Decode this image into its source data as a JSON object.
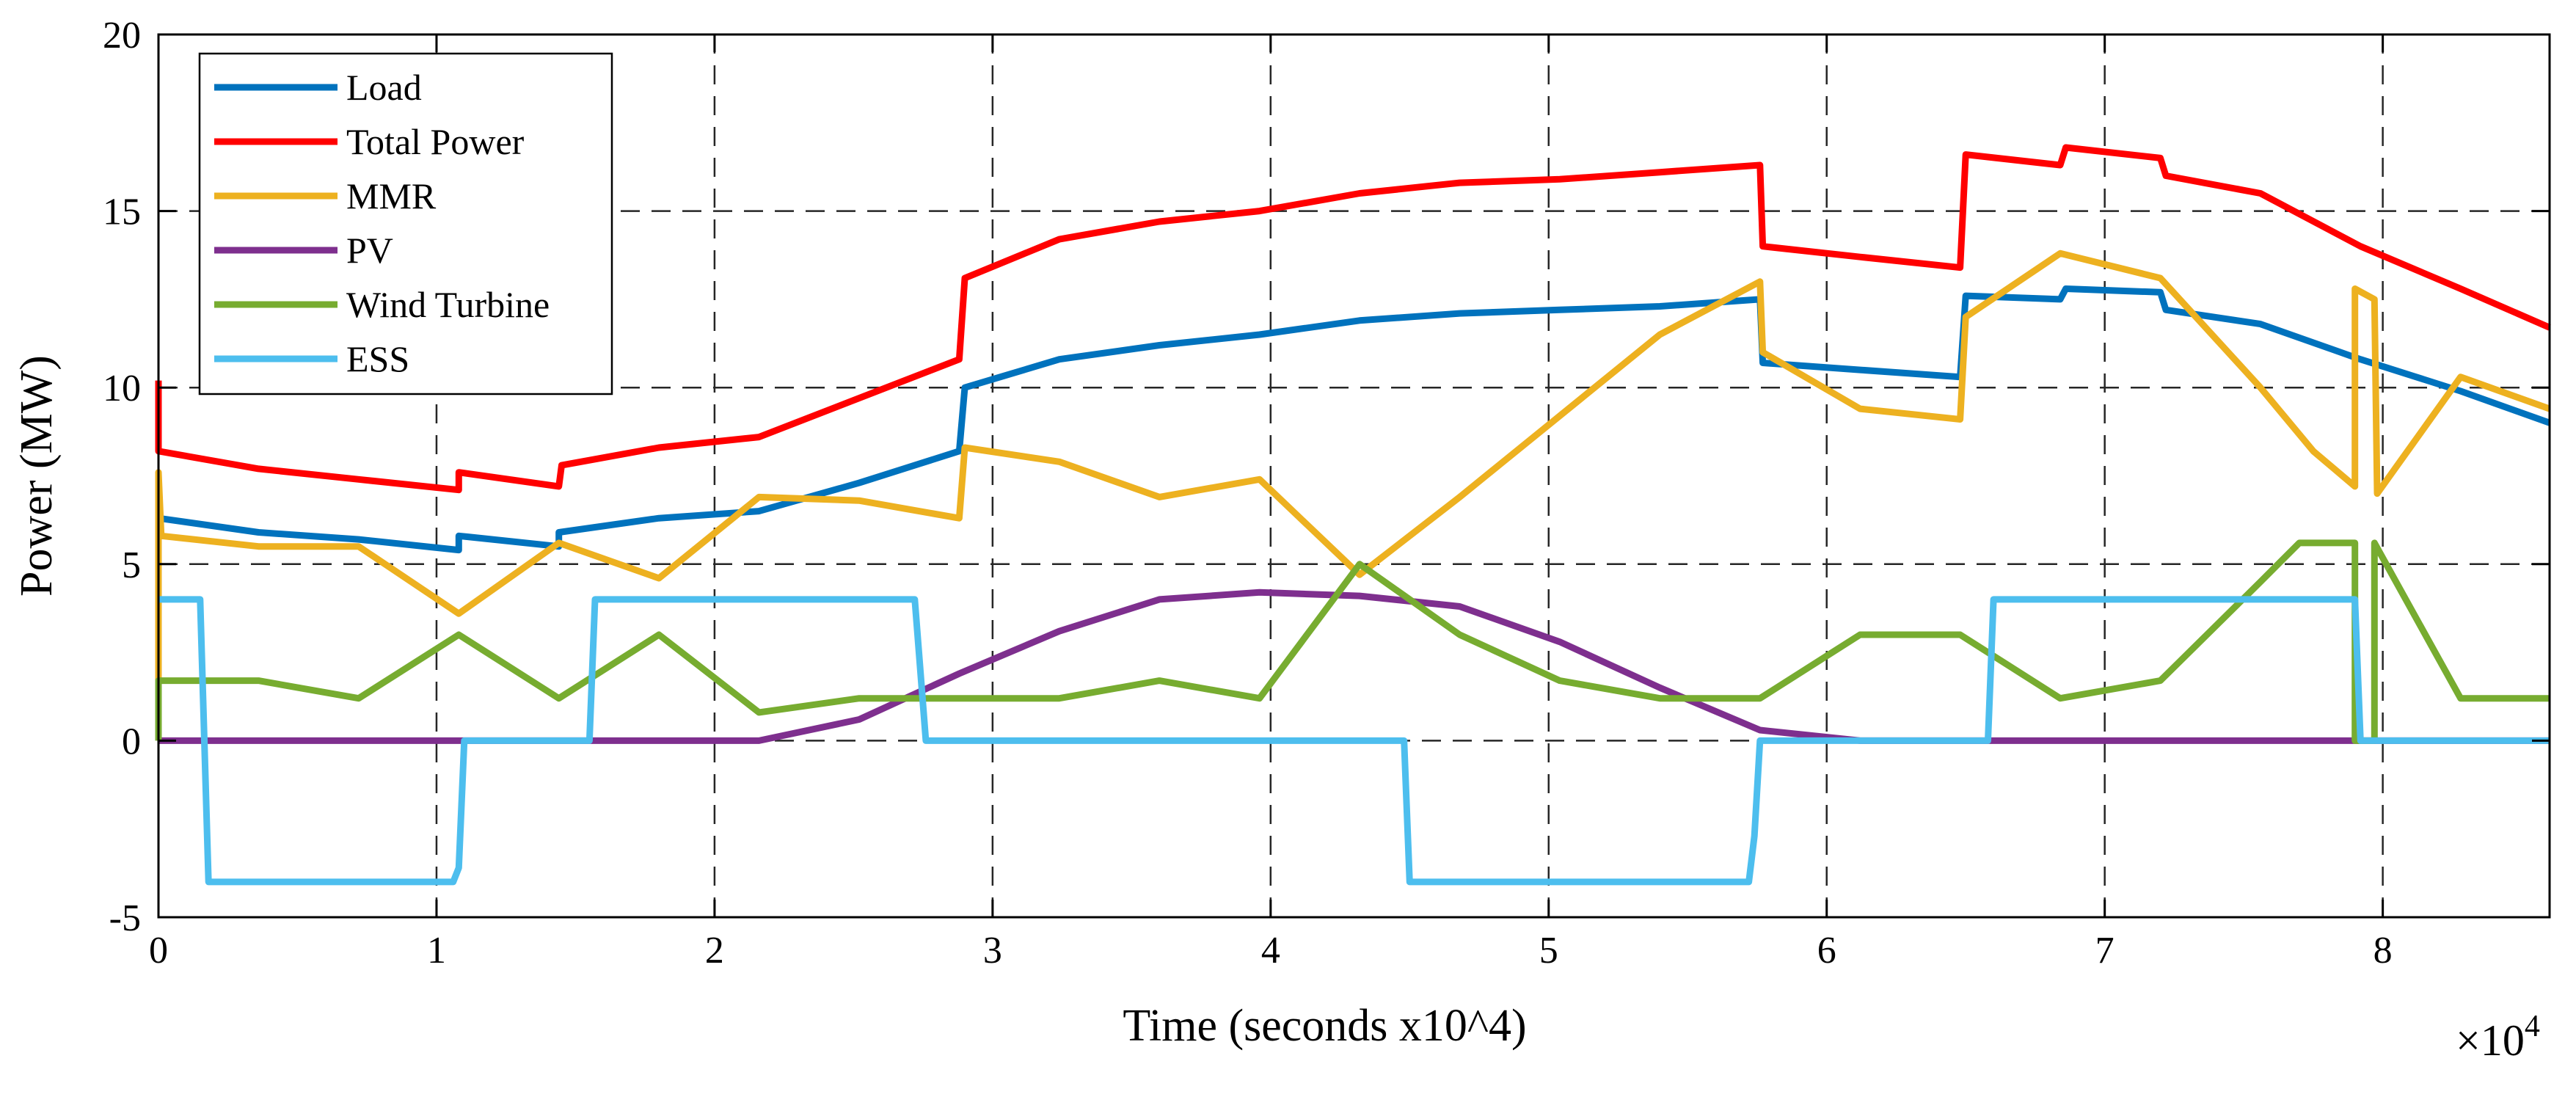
{
  "chart_data": {
    "type": "line",
    "title": "",
    "xlabel": "Time (seconds x10^4)",
    "ylabel": "Power (MW)",
    "x_multiplier": "×10",
    "x_multiplier_exponent": "4",
    "xlim": [
      0,
      8.6
    ],
    "ylim": [
      -5,
      20
    ],
    "xticks": [
      0,
      1,
      2,
      3,
      4,
      5,
      6,
      7,
      8
    ],
    "xtick_labels": [
      "0",
      "1",
      "2",
      "3",
      "4",
      "5",
      "6",
      "7",
      "8"
    ],
    "yticks": [
      -5,
      0,
      5,
      10,
      15,
      20
    ],
    "ytick_labels": [
      "-5",
      "0",
      "5",
      "10",
      "15",
      "20"
    ],
    "grid": true,
    "legend_position": "top-left",
    "series": [
      {
        "name": "Load",
        "color": "#0072BD",
        "points": [
          [
            0,
            6.3
          ],
          [
            0.36,
            5.9
          ],
          [
            0.72,
            5.7
          ],
          [
            1.08,
            5.4
          ],
          [
            1.08,
            5.8
          ],
          [
            1.44,
            5.5
          ],
          [
            1.44,
            5.9
          ],
          [
            1.8,
            6.3
          ],
          [
            2.16,
            6.5
          ],
          [
            2.52,
            7.3
          ],
          [
            2.88,
            8.2
          ],
          [
            2.9,
            10.0
          ],
          [
            3.24,
            10.8
          ],
          [
            3.6,
            11.2
          ],
          [
            3.96,
            11.5
          ],
          [
            4.32,
            11.9
          ],
          [
            4.68,
            12.1
          ],
          [
            5.04,
            12.2
          ],
          [
            5.4,
            12.3
          ],
          [
            5.76,
            12.5
          ],
          [
            5.77,
            10.7
          ],
          [
            6.12,
            10.5
          ],
          [
            6.48,
            10.3
          ],
          [
            6.5,
            12.6
          ],
          [
            6.84,
            12.5
          ],
          [
            6.86,
            12.8
          ],
          [
            7.2,
            12.7
          ],
          [
            7.22,
            12.2
          ],
          [
            7.56,
            11.8
          ],
          [
            7.92,
            10.8
          ],
          [
            8.28,
            9.9
          ],
          [
            8.6,
            9.0
          ]
        ]
      },
      {
        "name": "Total Power",
        "color": "#FF0000",
        "points": [
          [
            0,
            10.2
          ],
          [
            0,
            8.2
          ],
          [
            0.36,
            7.7
          ],
          [
            0.72,
            7.4
          ],
          [
            1.08,
            7.1
          ],
          [
            1.08,
            7.6
          ],
          [
            1.44,
            7.2
          ],
          [
            1.45,
            7.8
          ],
          [
            1.8,
            8.3
          ],
          [
            2.16,
            8.6
          ],
          [
            2.52,
            9.7
          ],
          [
            2.88,
            10.8
          ],
          [
            2.9,
            13.1
          ],
          [
            3.24,
            14.2
          ],
          [
            3.6,
            14.7
          ],
          [
            3.96,
            15.0
          ],
          [
            4.32,
            15.5
          ],
          [
            4.68,
            15.8
          ],
          [
            5.04,
            15.9
          ],
          [
            5.4,
            16.1
          ],
          [
            5.76,
            16.3
          ],
          [
            5.77,
            14.0
          ],
          [
            6.12,
            13.7
          ],
          [
            6.48,
            13.4
          ],
          [
            6.5,
            16.6
          ],
          [
            6.84,
            16.3
          ],
          [
            6.86,
            16.8
          ],
          [
            7.2,
            16.5
          ],
          [
            7.22,
            16.0
          ],
          [
            7.56,
            15.5
          ],
          [
            7.92,
            14.0
          ],
          [
            8.28,
            12.8
          ],
          [
            8.6,
            11.7
          ]
        ]
      },
      {
        "name": "MMR",
        "color": "#EDB120",
        "points": [
          [
            0,
            1.6
          ],
          [
            0,
            7.6
          ],
          [
            0.01,
            5.8
          ],
          [
            0.36,
            5.5
          ],
          [
            0.72,
            5.5
          ],
          [
            1.08,
            3.6
          ],
          [
            1.44,
            5.6
          ],
          [
            1.8,
            4.6
          ],
          [
            2.16,
            6.9
          ],
          [
            2.52,
            6.8
          ],
          [
            2.88,
            6.3
          ],
          [
            2.9,
            8.3
          ],
          [
            3.24,
            7.9
          ],
          [
            3.6,
            6.9
          ],
          [
            3.96,
            7.4
          ],
          [
            4.2,
            5.6
          ],
          [
            4.32,
            4.7
          ],
          [
            4.68,
            6.9
          ],
          [
            5.04,
            9.2
          ],
          [
            5.4,
            11.5
          ],
          [
            5.76,
            13.0
          ],
          [
            5.77,
            11.0
          ],
          [
            6.12,
            9.4
          ],
          [
            6.48,
            9.1
          ],
          [
            6.5,
            12.0
          ],
          [
            6.84,
            13.8
          ],
          [
            7.2,
            13.1
          ],
          [
            7.56,
            10.0
          ],
          [
            7.75,
            8.2
          ],
          [
            7.9,
            7.2
          ],
          [
            7.9,
            12.8
          ],
          [
            7.97,
            12.5
          ],
          [
            7.98,
            7.0
          ],
          [
            8.28,
            10.3
          ],
          [
            8.6,
            9.4
          ]
        ]
      },
      {
        "name": "PV",
        "color": "#7E2F8E",
        "points": [
          [
            0,
            0
          ],
          [
            2.16,
            0
          ],
          [
            2.52,
            0.6
          ],
          [
            2.88,
            1.9
          ],
          [
            3.24,
            3.1
          ],
          [
            3.6,
            4.0
          ],
          [
            3.96,
            4.2
          ],
          [
            4.32,
            4.1
          ],
          [
            4.68,
            3.8
          ],
          [
            5.04,
            2.8
          ],
          [
            5.4,
            1.5
          ],
          [
            5.76,
            0.3
          ],
          [
            6.12,
            0
          ],
          [
            8.6,
            0
          ]
        ]
      },
      {
        "name": "Wind Turbine",
        "color": "#77AC30",
        "points": [
          [
            0,
            0
          ],
          [
            0,
            1.7
          ],
          [
            0.36,
            1.7
          ],
          [
            0.72,
            1.2
          ],
          [
            1.08,
            3.0
          ],
          [
            1.44,
            1.2
          ],
          [
            1.8,
            3.0
          ],
          [
            2.16,
            0.8
          ],
          [
            2.52,
            1.2
          ],
          [
            2.88,
            1.2
          ],
          [
            3.24,
            1.2
          ],
          [
            3.6,
            1.7
          ],
          [
            3.96,
            1.2
          ],
          [
            4.32,
            5.0
          ],
          [
            4.68,
            3.0
          ],
          [
            5.04,
            1.7
          ],
          [
            5.4,
            1.2
          ],
          [
            5.76,
            1.2
          ],
          [
            6.12,
            3.0
          ],
          [
            6.48,
            3.0
          ],
          [
            6.84,
            1.2
          ],
          [
            7.2,
            1.7
          ],
          [
            7.56,
            4.5
          ],
          [
            7.7,
            5.6
          ],
          [
            7.9,
            5.6
          ],
          [
            7.9,
            0
          ],
          [
            7.97,
            0
          ],
          [
            7.97,
            5.6
          ],
          [
            8.28,
            1.2
          ],
          [
            8.6,
            1.2
          ]
        ]
      },
      {
        "name": "ESS",
        "color": "#4DBEEE",
        "points": [
          [
            0,
            4.0
          ],
          [
            0.15,
            4.0
          ],
          [
            0.18,
            -4.0
          ],
          [
            1.06,
            -4.0
          ],
          [
            1.08,
            -3.6
          ],
          [
            1.1,
            0
          ],
          [
            1.55,
            0
          ],
          [
            1.57,
            4.0
          ],
          [
            2.72,
            4.0
          ],
          [
            2.76,
            0
          ],
          [
            4.48,
            0
          ],
          [
            4.5,
            -4.0
          ],
          [
            5.72,
            -4.0
          ],
          [
            5.74,
            -2.7
          ],
          [
            5.76,
            0
          ],
          [
            6.58,
            0
          ],
          [
            6.6,
            4.0
          ],
          [
            7.9,
            4.0
          ],
          [
            7.92,
            0
          ],
          [
            8.6,
            0
          ]
        ]
      }
    ]
  }
}
